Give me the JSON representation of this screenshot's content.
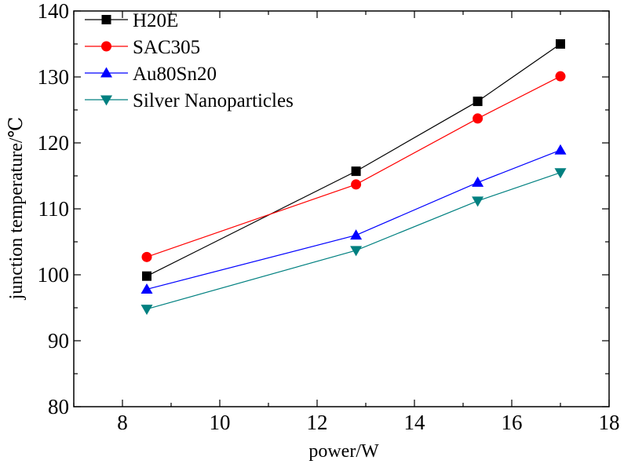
{
  "chart_data": {
    "type": "line",
    "xlabel": "power/W",
    "ylabel": "junction temperature/℃",
    "xlim": [
      7,
      18
    ],
    "ylim": [
      80,
      140
    ],
    "xticks": [
      8,
      10,
      12,
      14,
      16,
      18
    ],
    "yticks": [
      80,
      90,
      100,
      110,
      120,
      130,
      140
    ],
    "grid": false,
    "legend_position": "top-left",
    "x": [
      8.5,
      12.8,
      15.3,
      17
    ],
    "series": [
      {
        "name": "H20E",
        "values": [
          99.8,
          115.7,
          126.3,
          135.0
        ],
        "color": "#000000",
        "marker": "square"
      },
      {
        "name": "SAC305",
        "values": [
          102.7,
          113.7,
          123.7,
          130.1
        ],
        "color": "#ff0000",
        "marker": "circle"
      },
      {
        "name": "Au80Sn20",
        "values": [
          97.8,
          106.0,
          114.0,
          118.9
        ],
        "color": "#0000ff",
        "marker": "triangle-up"
      },
      {
        "name": "Silver Nanoparticles",
        "values": [
          94.8,
          103.7,
          111.2,
          115.5
        ],
        "color": "#008080",
        "marker": "triangle-down"
      }
    ]
  }
}
